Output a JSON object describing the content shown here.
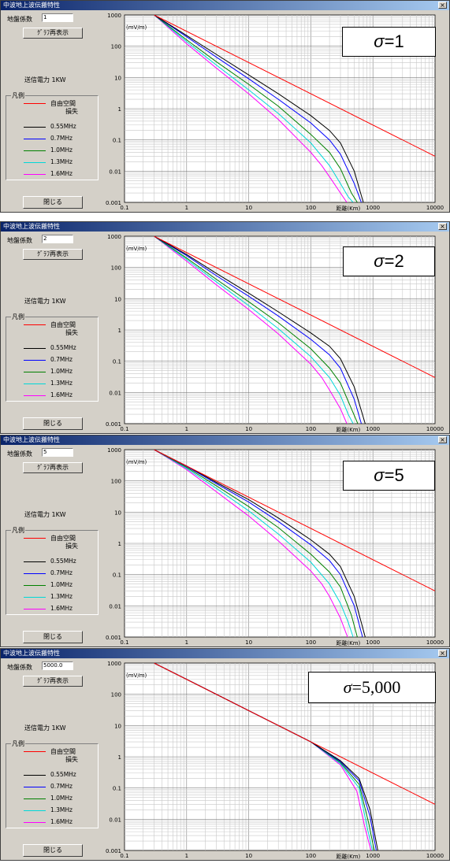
{
  "window_title": "中波地上波伝搬特性",
  "close_glyph": "×",
  "coef_label": "地盤係数",
  "redraw_label": "ｸﾞﾗﾌ再表示",
  "close_label": "閉じる",
  "power_label": "送信電力 1KW",
  "legend": {
    "title": "凡例",
    "free_space_line1": "自由空間",
    "free_space_line2": "損失",
    "entries": [
      "0.55MHz",
      "0.7MHz",
      "1.0MHz",
      "1.3MHz",
      "1.6MHz"
    ]
  },
  "colors": {
    "free_space": "#ff0000",
    "series": [
      "#000000",
      "#0000ff",
      "#008000",
      "#00d8d8",
      "#ff00ff"
    ]
  },
  "axis": {
    "y_unit": "(mV/m)",
    "x_label": "距離(Km)",
    "y_ticks": [
      "1000",
      "100",
      "10",
      "1",
      "0.1",
      "0.01",
      "0.001"
    ],
    "x_ticks": [
      "0.1",
      "1",
      "10",
      "100",
      "1000",
      "10000"
    ]
  },
  "panels": [
    {
      "coef": "1",
      "sigma_symbol": "σ",
      "sigma_eq": "=",
      "sigma_value": "1"
    },
    {
      "coef": "2",
      "sigma_symbol": "σ",
      "sigma_eq": "=",
      "sigma_value": "2"
    },
    {
      "coef": "5",
      "sigma_symbol": "σ",
      "sigma_eq": "=",
      "sigma_value": "5"
    },
    {
      "coef": "5000.0",
      "sigma_symbol": "σ",
      "sigma_eq": "=",
      "sigma_value": "5,000"
    }
  ],
  "chart_data": [
    {
      "type": "line",
      "x_scale": "log",
      "y_scale": "log",
      "xlim": [
        0.1,
        10000
      ],
      "ylim": [
        0.001,
        1000
      ],
      "xlabel": "距離(Km)",
      "ylabel": "(mV/m)",
      "grid": true,
      "series": [
        {
          "name": "自由空間損失",
          "x": [
            0.3,
            10000
          ],
          "y": [
            1000,
            0.03
          ]
        },
        {
          "name": "0.55MHz",
          "x": [
            0.3,
            1,
            3,
            10,
            30,
            100,
            200,
            300,
            500,
            700
          ],
          "y": [
            1000,
            220,
            55,
            12,
            3.0,
            0.6,
            0.2,
            0.08,
            0.01,
            0.001
          ]
        },
        {
          "name": "0.7MHz",
          "x": [
            0.3,
            1,
            3,
            10,
            30,
            100,
            200,
            300,
            500,
            650
          ],
          "y": [
            1000,
            200,
            45,
            9,
            2.0,
            0.35,
            0.1,
            0.035,
            0.004,
            0.001
          ]
        },
        {
          "name": "1.0MHz",
          "x": [
            0.3,
            1,
            3,
            10,
            30,
            100,
            200,
            300,
            450,
            560
          ],
          "y": [
            1000,
            160,
            32,
            6,
            1.2,
            0.15,
            0.04,
            0.012,
            0.002,
            0.001
          ]
        },
        {
          "name": "1.3MHz",
          "x": [
            0.3,
            1,
            3,
            10,
            30,
            100,
            200,
            300,
            400,
            480
          ],
          "y": [
            1000,
            140,
            25,
            4,
            0.7,
            0.08,
            0.015,
            0.004,
            0.0015,
            0.001
          ]
        },
        {
          "name": "1.6MHz",
          "x": [
            0.3,
            1,
            3,
            10,
            30,
            100,
            150,
            220,
            300,
            380
          ],
          "y": [
            1000,
            120,
            20,
            3,
            0.45,
            0.04,
            0.015,
            0.005,
            0.002,
            0.001
          ]
        }
      ]
    },
    {
      "type": "line",
      "x_scale": "log",
      "y_scale": "log",
      "xlim": [
        0.1,
        10000
      ],
      "ylim": [
        0.001,
        1000
      ],
      "xlabel": "距離(Km)",
      "ylabel": "(mV/m)",
      "grid": true,
      "series": [
        {
          "name": "自由空間損失",
          "x": [
            0.3,
            10000
          ],
          "y": [
            1000,
            0.03
          ]
        },
        {
          "name": "0.55MHz",
          "x": [
            0.3,
            1,
            3,
            10,
            30,
            100,
            200,
            300,
            500,
            750
          ],
          "y": [
            1000,
            260,
            65,
            15,
            3.8,
            0.8,
            0.3,
            0.12,
            0.015,
            0.001
          ]
        },
        {
          "name": "0.7MHz",
          "x": [
            0.3,
            1,
            3,
            10,
            30,
            100,
            200,
            300,
            500,
            650
          ],
          "y": [
            1000,
            240,
            55,
            12,
            2.8,
            0.5,
            0.16,
            0.06,
            0.006,
            0.001
          ]
        },
        {
          "name": "1.0MHz",
          "x": [
            0.3,
            1,
            3,
            10,
            30,
            100,
            200,
            300,
            450,
            570
          ],
          "y": [
            1000,
            200,
            42,
            8,
            1.7,
            0.25,
            0.06,
            0.02,
            0.003,
            0.001
          ]
        },
        {
          "name": "1.3MHz",
          "x": [
            0.3,
            1,
            3,
            10,
            30,
            100,
            200,
            300,
            400,
            480
          ],
          "y": [
            1000,
            180,
            35,
            6,
            1.1,
            0.14,
            0.03,
            0.008,
            0.002,
            0.001
          ]
        },
        {
          "name": "1.6MHz",
          "x": [
            0.3,
            1,
            3,
            10,
            30,
            100,
            150,
            200,
            300,
            380
          ],
          "y": [
            1000,
            160,
            28,
            4.5,
            0.75,
            0.08,
            0.03,
            0.012,
            0.003,
            0.001
          ]
        }
      ]
    },
    {
      "type": "line",
      "x_scale": "log",
      "y_scale": "log",
      "xlim": [
        0.1,
        10000
      ],
      "ylim": [
        0.001,
        1000
      ],
      "xlabel": "距離(Km)",
      "ylabel": "(mV/m)",
      "grid": true,
      "series": [
        {
          "name": "自由空間損失",
          "x": [
            0.3,
            10000
          ],
          "y": [
            1000,
            0.03
          ]
        },
        {
          "name": "0.55MHz",
          "x": [
            0.3,
            1,
            3,
            10,
            30,
            100,
            200,
            300,
            500,
            750
          ],
          "y": [
            1000,
            300,
            90,
            25,
            6.5,
            1.3,
            0.45,
            0.18,
            0.02,
            0.001
          ]
        },
        {
          "name": "0.7MHz",
          "x": [
            0.3,
            1,
            3,
            10,
            30,
            100,
            200,
            300,
            500,
            680
          ],
          "y": [
            1000,
            290,
            82,
            21,
            5.0,
            0.9,
            0.28,
            0.1,
            0.01,
            0.001
          ]
        },
        {
          "name": "1.0MHz",
          "x": [
            0.3,
            1,
            3,
            10,
            30,
            100,
            200,
            300,
            450,
            560
          ],
          "y": [
            1000,
            270,
            70,
            15,
            3.2,
            0.45,
            0.12,
            0.04,
            0.005,
            0.001
          ]
        },
        {
          "name": "1.3MHz",
          "x": [
            0.3,
            1,
            3,
            10,
            30,
            100,
            200,
            300,
            400,
            480
          ],
          "y": [
            1000,
            250,
            58,
            11,
            2.0,
            0.25,
            0.05,
            0.012,
            0.003,
            0.001
          ]
        },
        {
          "name": "1.6MHz",
          "x": [
            0.3,
            1,
            3,
            10,
            30,
            100,
            150,
            200,
            300,
            390
          ],
          "y": [
            1000,
            230,
            45,
            7.5,
            1.2,
            0.13,
            0.05,
            0.02,
            0.004,
            0.001
          ]
        }
      ]
    },
    {
      "type": "line",
      "x_scale": "log",
      "y_scale": "log",
      "xlim": [
        0.1,
        10000
      ],
      "ylim": [
        0.001,
        1000
      ],
      "xlabel": "距離(Km)",
      "ylabel": "(mV/m)",
      "grid": true,
      "series": [
        {
          "name": "自由空間損失",
          "x": [
            0.3,
            10000
          ],
          "y": [
            1000,
            0.03
          ]
        },
        {
          "name": "0.55MHz",
          "x": [
            0.3,
            1,
            10,
            100,
            300,
            600,
            900,
            1200
          ],
          "y": [
            1000,
            300,
            30,
            3,
            0.75,
            0.2,
            0.02,
            0.001
          ]
        },
        {
          "name": "0.7MHz",
          "x": [
            0.3,
            1,
            10,
            100,
            300,
            600,
            900,
            1130
          ],
          "y": [
            1000,
            300,
            30,
            3,
            0.7,
            0.17,
            0.012,
            0.001
          ]
        },
        {
          "name": "1.0MHz",
          "x": [
            0.3,
            1,
            10,
            100,
            300,
            600,
            850,
            1050
          ],
          "y": [
            1000,
            300,
            30,
            3,
            0.65,
            0.13,
            0.008,
            0.001
          ]
        },
        {
          "name": "1.3MHz",
          "x": [
            0.3,
            1,
            10,
            100,
            300,
            600,
            800,
            980
          ],
          "y": [
            1000,
            300,
            30,
            3,
            0.6,
            0.1,
            0.006,
            0.001
          ]
        },
        {
          "name": "1.6MHz",
          "x": [
            0.3,
            1,
            10,
            100,
            300,
            550,
            750,
            930
          ],
          "y": [
            1000,
            300,
            30,
            3,
            0.55,
            0.08,
            0.005,
            0.001
          ]
        }
      ]
    }
  ]
}
